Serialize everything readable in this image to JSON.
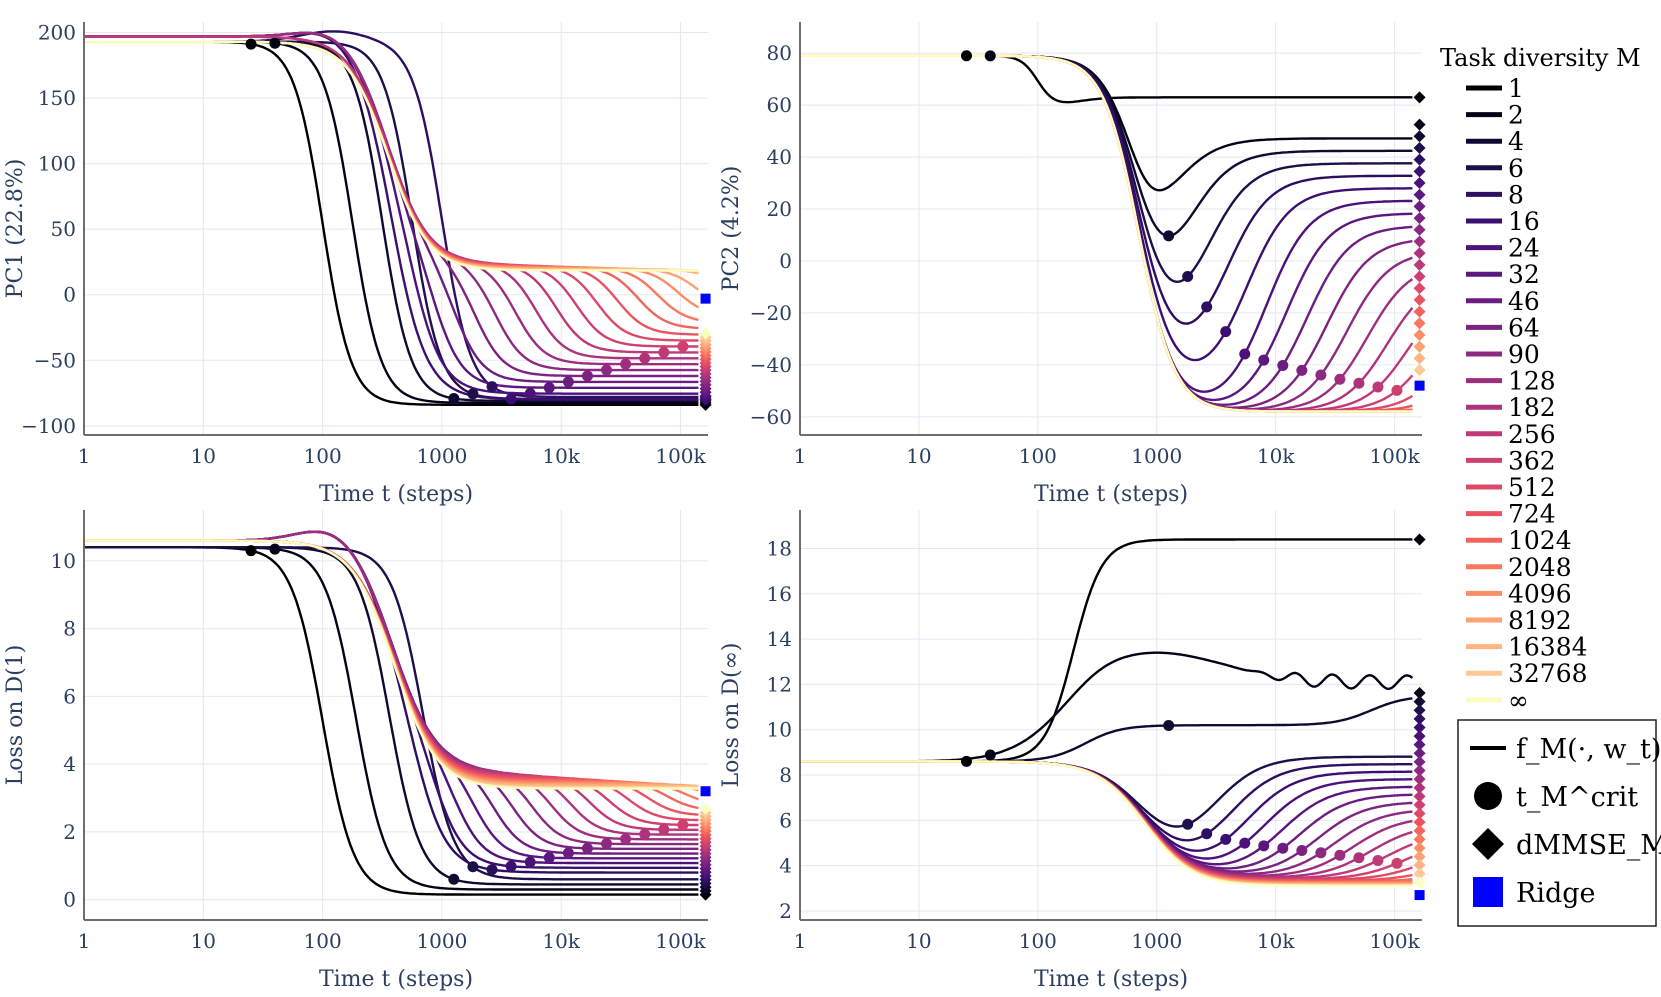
{
  "legend": {
    "title": "Task diversity M",
    "entries": [
      "1",
      "2",
      "4",
      "6",
      "8",
      "16",
      "24",
      "32",
      "46",
      "64",
      "90",
      "128",
      "182",
      "256",
      "362",
      "512",
      "724",
      "1024",
      "2048",
      "4096",
      "8192",
      "16384",
      "32768",
      "∞"
    ],
    "colors": [
      "#000004",
      "#050417",
      "#0f0b30",
      "#1d0f4a",
      "#2c0f62",
      "#3b0f70",
      "#4c127a",
      "#5c167f",
      "#6c1d81",
      "#7c2382",
      "#8c2981",
      "#9d2d7f",
      "#ad347c",
      "#be3977",
      "#ce4072",
      "#dd4a69",
      "#e95462",
      "#f3655c",
      "#f8785f",
      "#fb8d67",
      "#fea273",
      "#feb582",
      "#fec995",
      "#fcfdbf"
    ],
    "markers": [
      {
        "label": "f_M(·, w_t)",
        "kind": "line"
      },
      {
        "label": "t_M^crit",
        "kind": "circle"
      },
      {
        "label": "dMMSE_M",
        "kind": "diamond"
      },
      {
        "label": "Ridge",
        "kind": "square",
        "color": "#0000ff"
      }
    ]
  },
  "chart_data": [
    {
      "type": "line",
      "id": "pc1",
      "xlabel": "Time t (steps)",
      "ylabel": "PC1 (22.8%)",
      "xscale": "log",
      "xlim": [
        1,
        170000
      ],
      "ylim": [
        -107,
        208
      ],
      "xticks": [
        1,
        10,
        100,
        1000,
        10000,
        100000
      ],
      "xticklabels": [
        "1",
        "10",
        "100",
        "1000",
        "10k",
        "100k"
      ],
      "yticks": [
        -100,
        -50,
        0,
        50,
        100,
        150,
        200
      ],
      "yticklabels": [
        "−100",
        "−50",
        "0",
        "50",
        "100",
        "150",
        "200"
      ],
      "ridge": -3
    },
    {
      "type": "line",
      "id": "pc2",
      "xlabel": "Time t (steps)",
      "ylabel": "PC2 (4.2%)",
      "xscale": "log",
      "xlim": [
        1,
        170000
      ],
      "ylim": [
        -67,
        92
      ],
      "xticks": [
        1,
        10,
        100,
        1000,
        10000,
        100000
      ],
      "xticklabels": [
        "1",
        "10",
        "100",
        "1000",
        "10k",
        "100k"
      ],
      "yticks": [
        -60,
        -40,
        -20,
        0,
        20,
        40,
        60,
        80
      ],
      "yticklabels": [
        "−60",
        "−40",
        "−20",
        "0",
        "20",
        "40",
        "60",
        "80"
      ],
      "ridge": -48
    },
    {
      "type": "line",
      "id": "loss1",
      "xlabel": "Time t (steps)",
      "ylabel": "Loss on D(1)",
      "xscale": "log",
      "xlim": [
        1,
        170000
      ],
      "ylim": [
        -0.6,
        11.5
      ],
      "xticks": [
        1,
        10,
        100,
        1000,
        10000,
        100000
      ],
      "xticklabels": [
        "1",
        "10",
        "100",
        "1000",
        "10k",
        "100k"
      ],
      "yticks": [
        0,
        2,
        4,
        6,
        8,
        10
      ],
      "yticklabels": [
        "0",
        "2",
        "4",
        "6",
        "8",
        "10"
      ],
      "ridge": 3.2
    },
    {
      "type": "line",
      "id": "lossinf",
      "xlabel": "Time t (steps)",
      "ylabel": "Loss on D(∞)",
      "xscale": "log",
      "xlim": [
        1,
        170000
      ],
      "ylim": [
        1.6,
        19.7
      ],
      "xticks": [
        1,
        10,
        100,
        1000,
        10000,
        100000
      ],
      "xticklabels": [
        "1",
        "10",
        "100",
        "1000",
        "10k",
        "100k"
      ],
      "yticks": [
        2,
        4,
        6,
        8,
        10,
        12,
        14,
        16,
        18
      ],
      "yticklabels": [
        "2",
        "4",
        "6",
        "8",
        "10",
        "12",
        "14",
        "16",
        "18"
      ],
      "ridge": 2.7
    }
  ]
}
